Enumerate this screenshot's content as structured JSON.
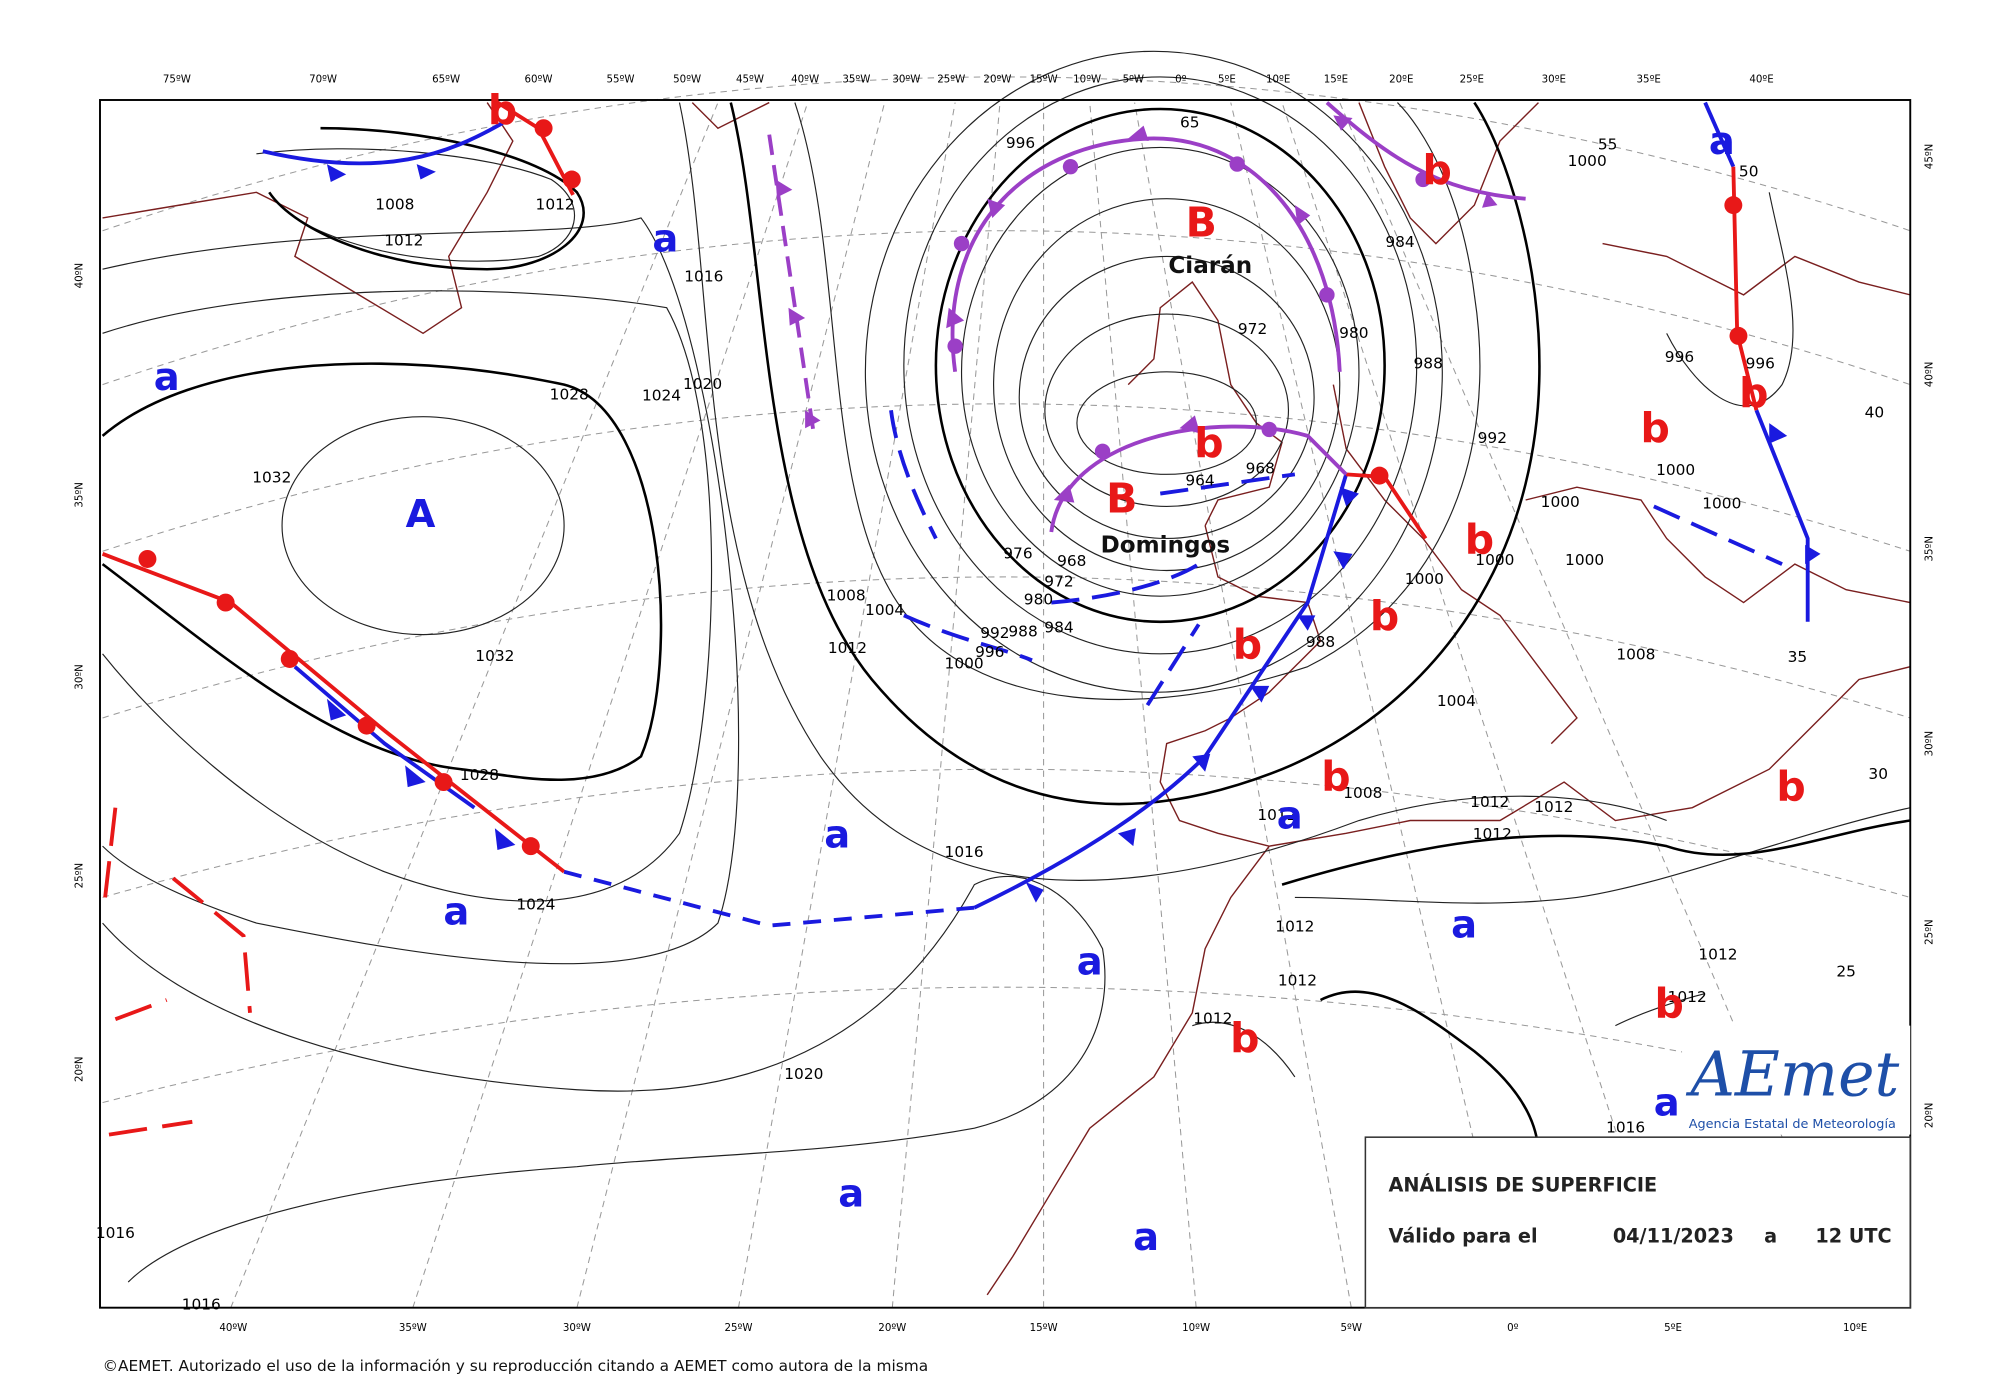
{
  "map": {
    "top_longitudes": [
      "75ºW",
      "70ºW",
      "65ºW",
      "60ºW",
      "55ºW",
      "50ºW",
      "45ºW",
      "40ºW",
      "35ºW",
      "30ºW",
      "25ºW",
      "20ºW",
      "15ºW",
      "10ºW",
      "5ºW",
      "0º",
      "5ºE",
      "10ºE",
      "15ºE",
      "20ºE",
      "25ºE",
      "30ºE",
      "35ºE",
      "40ºE"
    ],
    "bottom_longitudes": [
      "40ºW",
      "35ºW",
      "30ºW",
      "25ºW",
      "20ºW",
      "15ºW",
      "10ºW",
      "5ºW",
      "0º",
      "5ºE",
      "10ºE"
    ],
    "left_latitudes": [
      "40ºN",
      "35ºN",
      "30ºN",
      "25ºN",
      "20ºN"
    ],
    "right_latitudes": [
      "45ºN",
      "40ºN",
      "35ºN",
      "30ºN",
      "25ºN",
      "20ºN"
    ],
    "isobar_labels": [
      "1012",
      "1008",
      "1012",
      "1016",
      "1020",
      "1024",
      "1028",
      "1032",
      "1032",
      "1028",
      "1024",
      "1016",
      "1020",
      "1016",
      "1016",
      "1008",
      "1004",
      "1012",
      "1000",
      "996",
      "992",
      "988",
      "984",
      "980",
      "976",
      "972",
      "968",
      "964",
      "968",
      "972",
      "984",
      "980",
      "988",
      "992",
      "996",
      "1000",
      "996",
      "996",
      "1000",
      "1000",
      "1000",
      "1000",
      "1000",
      "1000",
      "988",
      "1004",
      "1008",
      "1008",
      "1012",
      "1012",
      "1012",
      "1012",
      "1012",
      "1012",
      "1012",
      "1012",
      "1012",
      "1016",
      "65",
      "55",
      "50",
      "40",
      "35",
      "30",
      "25"
    ],
    "high_center": "A",
    "highs": [
      "a",
      "a",
      "a",
      "a",
      "a",
      "a",
      "a",
      "a",
      "a",
      "a",
      "a"
    ],
    "lows": [
      "b",
      "b",
      "b",
      "b",
      "b",
      "b",
      "b",
      "b",
      "b",
      "b",
      "b",
      "b"
    ],
    "named_lows": [
      {
        "letter": "B",
        "name": "Ciarán"
      },
      {
        "letter": "B",
        "name": "Domingos"
      }
    ],
    "info_box": {
      "title": "ANÁLISIS DE SUPERFICIE",
      "valid_label": "Válido para el",
      "date": "04/11/2023",
      "at": "a",
      "time": "12 UTC"
    },
    "logo": {
      "name": "AEmet",
      "subtitle": "Agencia Estatal de Meteorología"
    },
    "copyright": "©AEMET. Autorizado el uso de la información y su reproducción citando a AEMET como autora de la misma"
  }
}
